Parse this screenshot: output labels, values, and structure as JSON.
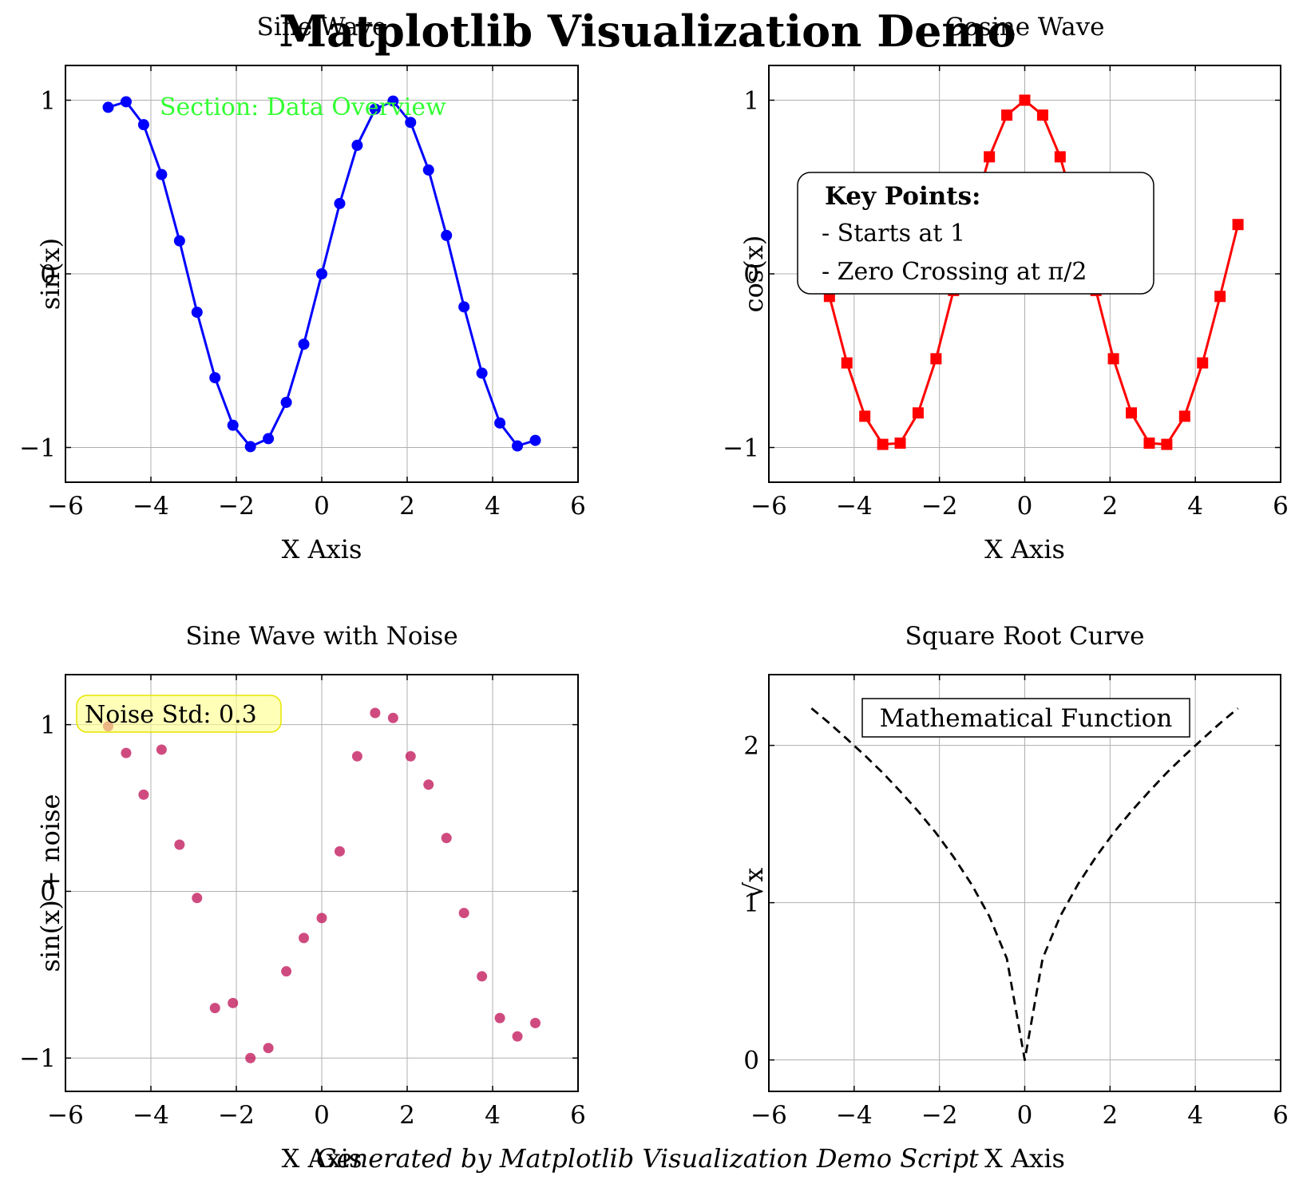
{
  "figure": {
    "suptitle": "Matplotlib Visualization Demo",
    "footer": "Generated by Matplotlib Visualization Demo Script"
  },
  "chart_data": [
    {
      "type": "line",
      "title": "Sine Wave",
      "xlabel": "X Axis",
      "ylabel": "sin(x)",
      "xlim": [
        -6,
        6
      ],
      "ylim": [
        -1.2,
        1.2
      ],
      "xticks": [
        "−6",
        "−4",
        "−2",
        "0",
        "2",
        "4",
        "6"
      ],
      "yticks": [
        "−1",
        "0",
        "1"
      ],
      "grid": true,
      "color": "#0000ff",
      "marker": "circle",
      "annotation": "Section: Data Overview",
      "annotation_color": "#33ff33",
      "x": [
        -5.0,
        -4.58,
        -4.17,
        -3.75,
        -3.33,
        -2.92,
        -2.5,
        -2.08,
        -1.67,
        -1.25,
        -0.83,
        -0.42,
        0.0,
        0.42,
        0.83,
        1.25,
        1.67,
        2.08,
        2.5,
        2.92,
        3.33,
        3.75,
        4.17,
        4.58,
        5.0
      ],
      "y": [
        0.959,
        0.991,
        0.859,
        0.572,
        0.19,
        -0.221,
        -0.598,
        -0.872,
        -0.995,
        -0.949,
        -0.74,
        -0.405,
        0.0,
        0.405,
        0.74,
        0.949,
        0.995,
        0.872,
        0.598,
        0.221,
        -0.19,
        -0.572,
        -0.859,
        -0.991,
        -0.959
      ]
    },
    {
      "type": "line",
      "title": "Cosine Wave",
      "xlabel": "X Axis",
      "ylabel": "cos(x)",
      "xlim": [
        -6,
        6
      ],
      "ylim": [
        -1.2,
        1.2
      ],
      "xticks": [
        "−6",
        "−4",
        "−2",
        "0",
        "2",
        "4",
        "6"
      ],
      "yticks": [
        "−1",
        "0",
        "1"
      ],
      "grid": true,
      "color": "#ff0000",
      "marker": "square",
      "annotation_box": {
        "heading": "Key Points:",
        "lines": [
          "- Starts at 1",
          "- Zero Crossing at π/2"
        ]
      },
      "x": [
        -5.0,
        -4.58,
        -4.17,
        -3.75,
        -3.33,
        -2.92,
        -2.5,
        -2.08,
        -1.67,
        -1.25,
        -0.83,
        -0.42,
        0.0,
        0.42,
        0.83,
        1.25,
        1.67,
        2.08,
        2.5,
        2.92,
        3.33,
        3.75,
        4.17,
        4.58,
        5.0
      ],
      "y": [
        0.284,
        -0.13,
        -0.513,
        -0.82,
        -0.982,
        -0.975,
        -0.801,
        -0.489,
        -0.096,
        0.315,
        0.674,
        0.914,
        1.0,
        0.914,
        0.674,
        0.315,
        -0.096,
        -0.489,
        -0.801,
        -0.975,
        -0.982,
        -0.82,
        -0.513,
        -0.13,
        0.284
      ]
    },
    {
      "type": "scatter",
      "title": "Sine Wave with Noise",
      "xlabel": "X Axis",
      "ylabel": "sin(x) + noise",
      "xlim": [
        -6,
        6
      ],
      "ylim": [
        -1.2,
        1.3
      ],
      "xticks": [
        "−6",
        "−4",
        "−2",
        "0",
        "2",
        "4",
        "6"
      ],
      "yticks": [
        "−1",
        "0",
        "1"
      ],
      "grid": true,
      "color": "#c2185b",
      "annotation": "Noise Std: 0.3",
      "x": [
        -5.0,
        -4.58,
        -4.17,
        -3.75,
        -3.33,
        -2.92,
        -2.5,
        -2.08,
        -1.67,
        -1.25,
        -0.83,
        -0.42,
        0.0,
        0.42,
        0.83,
        1.25,
        1.67,
        2.08,
        2.5,
        2.92,
        3.33,
        3.75,
        4.17,
        4.58,
        5.0
      ],
      "y": [
        0.99,
        0.83,
        0.58,
        0.85,
        0.28,
        -0.04,
        -0.7,
        -0.67,
        -1.0,
        -0.94,
        -0.48,
        -0.28,
        -0.16,
        0.24,
        0.81,
        1.07,
        1.04,
        0.81,
        0.64,
        0.32,
        -0.13,
        -0.51,
        -0.76,
        -0.87,
        -0.79
      ]
    },
    {
      "type": "line",
      "title": "Square Root Curve",
      "xlabel": "X Axis",
      "ylabel": "√x",
      "xlim": [
        -6,
        6
      ],
      "ylim": [
        -0.2,
        2.45
      ],
      "xticks": [
        "−6",
        "−4",
        "−2",
        "0",
        "2",
        "4",
        "6"
      ],
      "yticks": [
        "0",
        "1",
        "2"
      ],
      "grid": true,
      "color": "#000000",
      "linestyle": "dashed",
      "annotation": "Mathematical Function",
      "x": [
        -5.0,
        -4.58,
        -4.17,
        -3.75,
        -3.33,
        -2.92,
        -2.5,
        -2.08,
        -1.67,
        -1.25,
        -0.83,
        -0.42,
        0.0,
        0.42,
        0.83,
        1.25,
        1.67,
        2.08,
        2.5,
        2.92,
        3.33,
        3.75,
        4.17,
        4.58,
        5.0
      ],
      "y": [
        2.236,
        2.141,
        2.041,
        1.936,
        1.826,
        1.708,
        1.581,
        1.443,
        1.291,
        1.118,
        0.913,
        0.645,
        0.0,
        0.645,
        0.913,
        1.118,
        1.291,
        1.443,
        1.581,
        1.708,
        1.826,
        1.936,
        2.041,
        2.141,
        2.236
      ]
    }
  ]
}
